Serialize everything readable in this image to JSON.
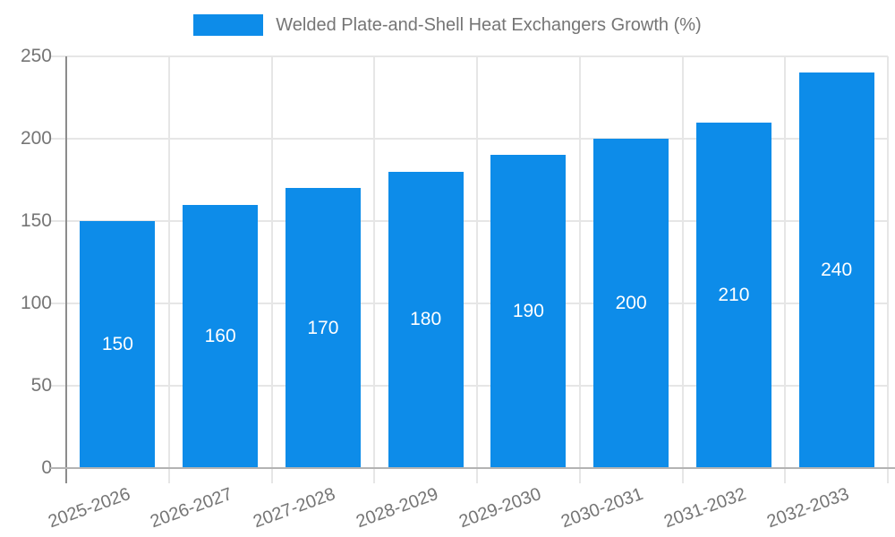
{
  "chart_data": {
    "type": "bar",
    "title": "",
    "legend": "Welded Plate-and-Shell Heat Exchangers Growth (%)",
    "legend_position": "top-center",
    "categories": [
      "2025-2026",
      "2026-2027",
      "2027-2028",
      "2028-2029",
      "2029-2030",
      "2030-2031",
      "2031-2032",
      "2032-2033"
    ],
    "series": [
      {
        "name": "Welded Plate-and-Shell Heat Exchangers Growth (%)",
        "values": [
          150,
          160,
          170,
          180,
          190,
          200,
          210,
          240
        ]
      }
    ],
    "bar_value_labels": [
      "150",
      "160",
      "170",
      "180",
      "190",
      "200",
      "210",
      "240"
    ],
    "xlabel": "",
    "ylabel": "",
    "ylim": [
      0,
      250
    ],
    "yticks": [
      0,
      50,
      100,
      150,
      200,
      250
    ],
    "ytick_labels": [
      "0",
      "50",
      "100",
      "150",
      "200",
      "250"
    ],
    "grid": "on",
    "x_label_rotation_deg": -20,
    "colors": {
      "bar": "#0d8ce9",
      "bar_label_text": "#ffffff",
      "axis_text": "#757575",
      "legend_text": "#757575",
      "gridline": "#e6e6e6",
      "x_axis_line": "#b3b3b3",
      "y_axis_line": "#8c8c8c",
      "background": "#ffffff"
    }
  }
}
